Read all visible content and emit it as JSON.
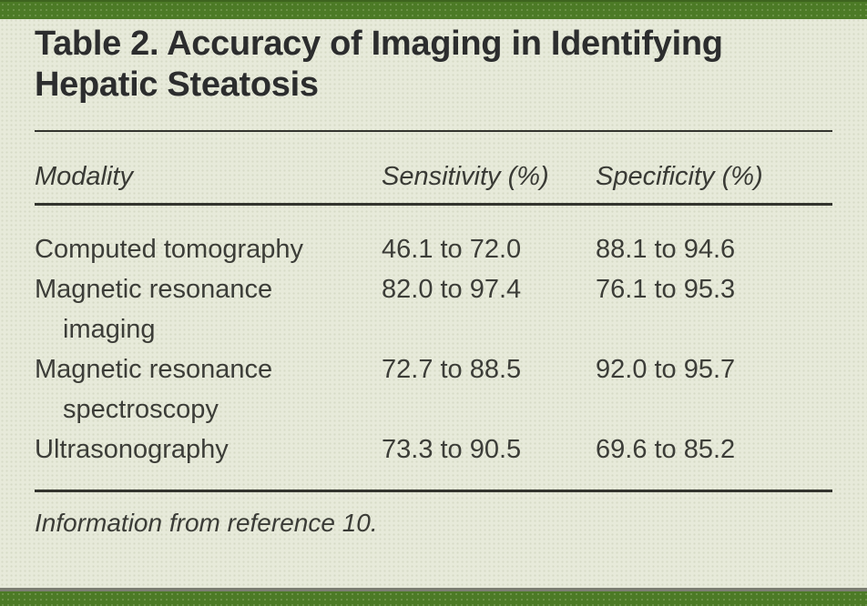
{
  "page": {
    "background_color": "#e7eada",
    "accent_green": "#4c7a26",
    "divider_gray": "#7c7e72",
    "rule_color": "#33342e",
    "text_color": "#2c2d2e"
  },
  "table": {
    "title": "Table 2. Accuracy of Imaging in Identifying Hepatic Steatosis",
    "columns": [
      "Modality",
      "Sensitivity (%)",
      "Specificity (%)"
    ],
    "rows": [
      {
        "modality": "Computed tomography",
        "sensitivity": "46.1 to 72.0",
        "specificity": "88.1 to 94.6"
      },
      {
        "modality": "Magnetic resonance imaging",
        "sensitivity": "82.0 to 97.4",
        "specificity": "76.1 to 95.3"
      },
      {
        "modality": "Magnetic resonance spectroscopy",
        "sensitivity": "72.7 to 88.5",
        "specificity": "92.0 to 95.7"
      },
      {
        "modality": "Ultrasonography",
        "sensitivity": "73.3 to 90.5",
        "specificity": "69.6 to 85.2"
      }
    ],
    "footnote": "Information from reference 10."
  },
  "chart_data": {
    "type": "table",
    "title": "Table 2. Accuracy of Imaging in Identifying Hepatic Steatosis",
    "columns": [
      "Modality",
      "Sensitivity (%)",
      "Specificity (%)"
    ],
    "rows": [
      [
        "Computed tomography",
        "46.1 to 72.0",
        "88.1 to 94.6"
      ],
      [
        "Magnetic resonance imaging",
        "82.0 to 97.4",
        "76.1 to 95.3"
      ],
      [
        "Magnetic resonance spectroscopy",
        "72.7 to 88.5",
        "92.0 to 95.7"
      ],
      [
        "Ultrasonography",
        "73.3 to 90.5",
        "69.6 to 85.2"
      ]
    ],
    "footnote": "Information from reference 10."
  }
}
